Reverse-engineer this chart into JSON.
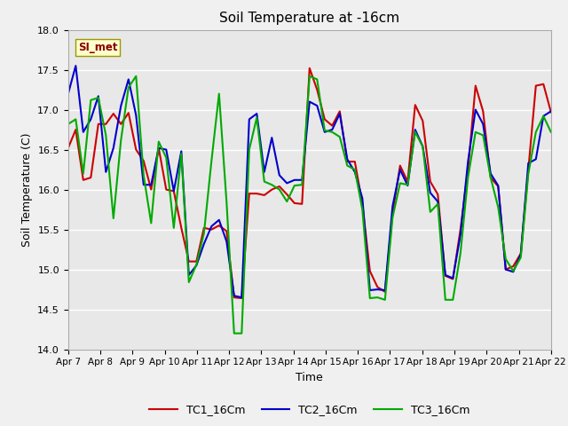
{
  "title": "Soil Temperature at -16cm",
  "xlabel": "Time",
  "ylabel": "Soil Temperature (C)",
  "ylim": [
    14.0,
    18.0
  ],
  "yticks": [
    14.0,
    14.5,
    15.0,
    15.5,
    16.0,
    16.5,
    17.0,
    17.5,
    18.0
  ],
  "xtick_labels": [
    "Apr 7",
    "Apr 8",
    "Apr 9",
    "Apr 10",
    "Apr 11",
    "Apr 12",
    "Apr 13",
    "Apr 14",
    "Apr 15",
    "Apr 16",
    "Apr 17",
    "Apr 18",
    "Apr 19",
    "Apr 20",
    "Apr 21",
    "Apr 22"
  ],
  "annotation_text": "SI_met",
  "bg_color": "#e8e8e8",
  "fig_color": "#f0f0f0",
  "line_colors": [
    "#cc0000",
    "#0000cc",
    "#00aa00"
  ],
  "line_labels": [
    "TC1_16Cm",
    "TC2_16Cm",
    "TC3_16Cm"
  ],
  "TC1_16Cm": [
    16.52,
    16.75,
    16.12,
    16.15,
    16.82,
    16.82,
    16.95,
    16.82,
    16.96,
    16.5,
    16.36,
    16.0,
    16.52,
    16.0,
    15.98,
    15.52,
    15.1,
    15.1,
    15.52,
    15.5,
    15.55,
    15.48,
    14.65,
    14.64,
    15.95,
    15.95,
    15.93,
    16.0,
    16.04,
    15.94,
    15.83,
    15.82,
    17.52,
    17.25,
    16.88,
    16.8,
    16.98,
    16.35,
    16.35,
    15.82,
    14.98,
    14.78,
    14.72,
    15.7,
    16.3,
    16.1,
    17.06,
    16.86,
    16.1,
    15.94,
    14.92,
    14.88,
    15.5,
    16.25,
    17.3,
    16.98,
    16.15,
    16.04,
    15.0,
    15.04,
    15.2,
    16.25,
    17.3,
    17.32,
    16.97
  ],
  "TC2_16Cm": [
    17.2,
    17.55,
    16.72,
    16.88,
    17.17,
    16.22,
    16.52,
    17.05,
    17.38,
    16.93,
    16.06,
    16.06,
    16.52,
    16.5,
    15.98,
    16.48,
    14.93,
    15.05,
    15.32,
    15.54,
    15.62,
    15.35,
    14.67,
    14.65,
    16.88,
    16.95,
    16.22,
    16.65,
    16.18,
    16.08,
    16.12,
    16.12,
    17.1,
    17.05,
    16.72,
    16.75,
    16.95,
    16.38,
    16.22,
    15.89,
    14.74,
    14.75,
    14.74,
    15.79,
    16.25,
    16.05,
    16.75,
    16.54,
    15.96,
    15.85,
    14.93,
    14.89,
    15.43,
    16.35,
    17.0,
    16.82,
    16.2,
    16.05,
    15.0,
    14.97,
    15.19,
    16.33,
    16.38,
    16.92,
    16.98
  ],
  "TC3_16Cm": [
    16.82,
    16.88,
    16.2,
    17.12,
    17.15,
    16.68,
    15.64,
    16.62,
    17.28,
    17.42,
    16.18,
    15.58,
    16.6,
    16.4,
    15.52,
    16.45,
    14.84,
    15.06,
    15.45,
    16.36,
    17.2,
    15.84,
    14.2,
    14.2,
    16.5,
    16.9,
    16.1,
    16.06,
    16.0,
    15.85,
    16.05,
    16.06,
    17.42,
    17.38,
    16.74,
    16.72,
    16.66,
    16.3,
    16.25,
    15.75,
    14.64,
    14.65,
    14.62,
    15.65,
    16.08,
    16.06,
    16.72,
    16.54,
    15.72,
    15.82,
    14.62,
    14.62,
    15.2,
    16.15,
    16.72,
    16.68,
    16.15,
    15.78,
    15.13,
    14.98,
    15.15,
    16.2,
    16.72,
    16.92,
    16.72
  ]
}
